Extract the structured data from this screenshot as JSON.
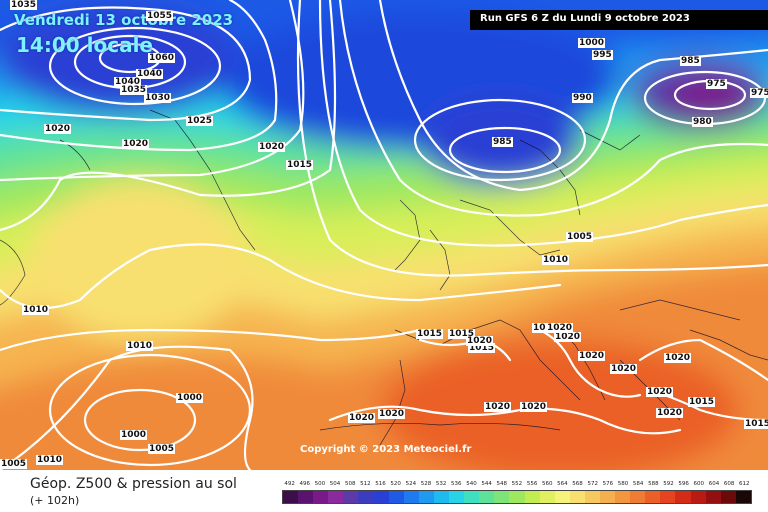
{
  "header": {
    "date": "Vendredi 13 octobre 2023",
    "time": "14:00 locale",
    "run": "Run GFS 6 Z du Lundi 9 octobre 2023"
  },
  "copyright": "Copyright © 2023 Meteociel.fr",
  "pressure_labels": [
    "1035",
    "1055",
    "1060",
    "1040",
    "1040",
    "1030",
    "1035",
    "1025",
    "1020",
    "1020",
    "1020",
    "1015",
    "1000",
    "995",
    "985",
    "975",
    "975",
    "980",
    "990",
    "985",
    "1005",
    "1010",
    "1010",
    "1010",
    "1015",
    "1015",
    "1015",
    "1020",
    "1020",
    "1020",
    "1020",
    "1020",
    "1020",
    "1020",
    "1020",
    "1020",
    "1015",
    "1015",
    "1020",
    "1020",
    "1020",
    "1020",
    "1000",
    "1000",
    "1005",
    "1005",
    "1010"
  ],
  "legend": {
    "title": "Géop. Z500 & pression au sol",
    "subtitle": "(+ 102h)",
    "ticks": [
      "492",
      "496",
      "500",
      "504",
      "508",
      "512",
      "516",
      "520",
      "524",
      "528",
      "532",
      "536",
      "540",
      "544",
      "548",
      "552",
      "556",
      "560",
      "564",
      "568",
      "572",
      "576",
      "580",
      "584",
      "588",
      "592",
      "596",
      "600",
      "604",
      "608",
      "612"
    ],
    "colors": [
      "#3c0f4a",
      "#5a1470",
      "#7a1a8a",
      "#8a2a9e",
      "#5c3aa8",
      "#3c3cc0",
      "#2a3fd4",
      "#1e5ae6",
      "#1f7af0",
      "#1f9af0",
      "#1fbaf0",
      "#27d4e6",
      "#3ee0c0",
      "#5ee29a",
      "#7ee47a",
      "#9ee860",
      "#c0ee50",
      "#e0f060",
      "#f6f27a",
      "#f8e070",
      "#f6c860",
      "#f4b050",
      "#f29640",
      "#ef7c34",
      "#ea6028",
      "#e44420",
      "#d42a18",
      "#b81a14",
      "#941010",
      "#6a0a0a",
      "#1a0808"
    ]
  },
  "colors": {
    "contour": "#ffffff",
    "label_bg": "#ffffff",
    "date_text": "#7df3ff",
    "run_bg": "#000000"
  }
}
